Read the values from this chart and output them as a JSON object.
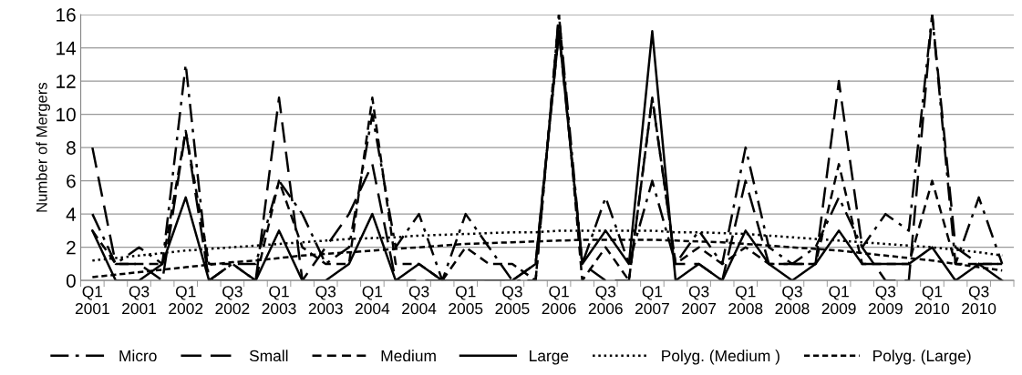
{
  "chart_data": {
    "type": "line",
    "ylabel": "Number of Mergers",
    "categories": [
      "Q1\n2001",
      null,
      "Q3\n2001",
      null,
      "Q1\n2002",
      null,
      "Q3\n2002",
      null,
      "Q1\n2003",
      null,
      "Q3\n2003",
      null,
      "Q1\n2004",
      null,
      "Q3\n2004",
      null,
      "Q1\n2005",
      null,
      "Q3\n2005",
      null,
      "Q1\n2006",
      null,
      "Q3\n2006",
      null,
      "Q1\n2007",
      null,
      "Q3\n2007",
      null,
      "Q1\n2008",
      null,
      "Q3\n2008",
      null,
      "Q1\n2009",
      null,
      "Q3\n2009",
      null,
      "Q1\n2010",
      null,
      "Q3\n2010",
      null
    ],
    "series": [
      {
        "name": "Micro",
        "color": "#000000",
        "line_style": "dashdot",
        "values": [
          4,
          1,
          2,
          1,
          13,
          0,
          1,
          1,
          6,
          4,
          1,
          2,
          10,
          2,
          4,
          0,
          4,
          2,
          0,
          0,
          16,
          1,
          5,
          1,
          6,
          1,
          3,
          1,
          8,
          2,
          1,
          2,
          5,
          2,
          4,
          3,
          16,
          1,
          5,
          1
        ]
      },
      {
        "name": "Small",
        "color": "#000000",
        "line_style": "longdash",
        "values": [
          8,
          1,
          1,
          0,
          9,
          0,
          1,
          0,
          11,
          0,
          2,
          4,
          7,
          0,
          0,
          0,
          0,
          0,
          0,
          1,
          15,
          1,
          0,
          0,
          11,
          1,
          1,
          0,
          6,
          1,
          1,
          1,
          12,
          2,
          0,
          0,
          16,
          2,
          1,
          1
        ]
      },
      {
        "name": "Medium",
        "color": "#000000",
        "line_style": "dashed",
        "values": [
          3,
          1,
          1,
          1,
          9,
          1,
          1,
          0,
          6,
          2,
          1,
          1,
          11,
          1,
          1,
          0,
          2,
          1,
          1,
          0,
          16,
          0,
          2,
          0,
          11,
          1,
          2,
          1,
          2,
          1,
          1,
          1,
          7,
          1,
          1,
          1,
          6,
          1,
          1,
          1
        ]
      },
      {
        "name": "Large",
        "color": "#000000",
        "line_style": "solid",
        "values": [
          3,
          0,
          0,
          1,
          5,
          0,
          0,
          0,
          3,
          0,
          0,
          1,
          4,
          0,
          1,
          0,
          0,
          0,
          0,
          1,
          15,
          1,
          3,
          1,
          15,
          0,
          1,
          0,
          3,
          1,
          0,
          1,
          3,
          1,
          1,
          1,
          2,
          0,
          1,
          0
        ]
      },
      {
        "name": "Polyg. (Medium )",
        "color": "#000000",
        "line_style": "dotted",
        "values": [
          1.2,
          1.35,
          1.5,
          1.65,
          1.8,
          1.9,
          2.0,
          2.1,
          2.2,
          2.3,
          2.4,
          2.5,
          2.55,
          2.6,
          2.7,
          2.75,
          2.8,
          2.85,
          2.9,
          2.9,
          3.0,
          3.0,
          3.0,
          3.0,
          3.0,
          2.9,
          2.9,
          2.85,
          2.8,
          2.7,
          2.6,
          2.5,
          2.4,
          2.3,
          2.2,
          2.1,
          2.0,
          1.85,
          1.7,
          1.5
        ]
      },
      {
        "name": "Polyg. (Large)",
        "color": "#000000",
        "line_style": "shortdash",
        "values": [
          0.2,
          0.35,
          0.5,
          0.65,
          0.8,
          0.95,
          1.1,
          1.2,
          1.35,
          1.5,
          1.6,
          1.7,
          1.8,
          1.9,
          2.0,
          2.1,
          2.2,
          2.25,
          2.3,
          2.35,
          2.4,
          2.45,
          2.45,
          2.45,
          2.45,
          2.4,
          2.35,
          2.3,
          2.2,
          2.1,
          2.0,
          1.9,
          1.8,
          1.65,
          1.5,
          1.35,
          1.2,
          1.0,
          0.8,
          0.6
        ]
      }
    ],
    "ylim": [
      0,
      16
    ],
    "yticks": [
      0,
      2,
      4,
      6,
      8,
      10,
      12,
      14,
      16
    ],
    "grid": "y",
    "legend": "bottom"
  }
}
